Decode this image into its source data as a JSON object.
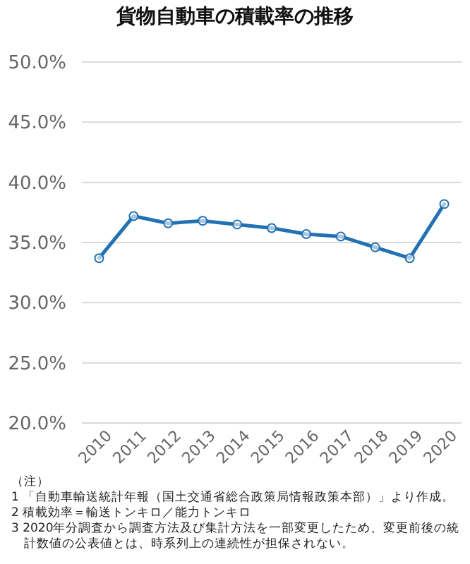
{
  "chart_data": {
    "type": "line",
    "title": "貨物自動車の積載率の推移",
    "categories": [
      "2010",
      "2011",
      "2012",
      "2013",
      "2014",
      "2015",
      "2016",
      "2017",
      "2018",
      "2019",
      "2020"
    ],
    "series": [
      {
        "color": "#2271b3",
        "values": [
          33.7,
          37.2,
          36.6,
          36.8,
          36.5,
          36.2,
          35.7,
          35.5,
          34.6,
          33.7,
          38.2
        ]
      }
    ],
    "ylim": [
      20,
      50
    ],
    "yticks": [
      {
        "value": 20,
        "label": "20.0%"
      },
      {
        "value": 25,
        "label": "25.0%"
      },
      {
        "value": 30,
        "label": "30.0%"
      },
      {
        "value": 35,
        "label": "35.0%"
      },
      {
        "value": 40,
        "label": "40.0%"
      },
      {
        "value": 45,
        "label": "45.0%"
      },
      {
        "value": 50,
        "label": "50.0%"
      }
    ],
    "grid": "y",
    "marker": "circle",
    "line_style": "solid",
    "annotations": [
      "（注）",
      "1 「自動車輸送統計年報（国土交通省総合政策局情報政策本部）」より作成。",
      "2 積載効率＝輸送トンキロ／能力トンキロ",
      "3 2020年分調査から調査方法及び集計方法を一部変更したため、変更前後の統計数値の公表値とは、時系列上の連続性が担保されない。"
    ]
  }
}
